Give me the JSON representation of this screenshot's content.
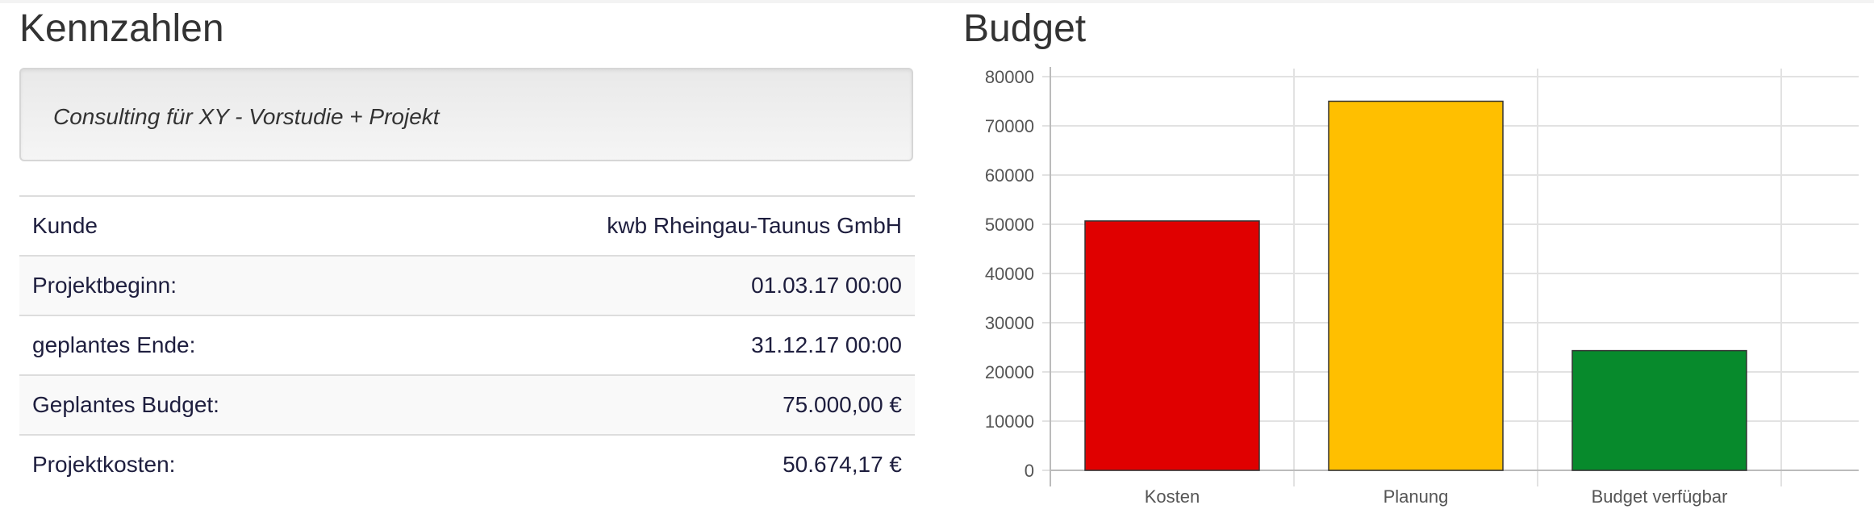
{
  "kennzahlen": {
    "title": "Kennzahlen",
    "description": "Consulting für XY - Vorstudie + Projekt",
    "rows": [
      {
        "label": "Kunde",
        "value": "kwb Rheingau-Taunus GmbH"
      },
      {
        "label": "Projektbeginn:",
        "value": "01.03.17 00:00"
      },
      {
        "label": "geplantes Ende:",
        "value": "31.12.17 00:00"
      },
      {
        "label": "Geplantes Budget:",
        "value": "75.000,00 €"
      },
      {
        "label": "Projektkosten:",
        "value": "50.674,17 €"
      }
    ]
  },
  "budget": {
    "title": "Budget"
  },
  "chart_data": {
    "type": "bar",
    "title": "Budget",
    "categories": [
      "Kosten",
      "Planung",
      "Budget verfügbar"
    ],
    "values": [
      50674.17,
      75000,
      24325.83
    ],
    "colors": [
      "#e00000",
      "#ffbf00",
      "#078a2c"
    ],
    "ylim": [
      0,
      80000
    ],
    "yticks": [
      0,
      10000,
      20000,
      30000,
      40000,
      50000,
      60000,
      70000,
      80000
    ],
    "grid": true,
    "xlabel": "",
    "ylabel": ""
  }
}
